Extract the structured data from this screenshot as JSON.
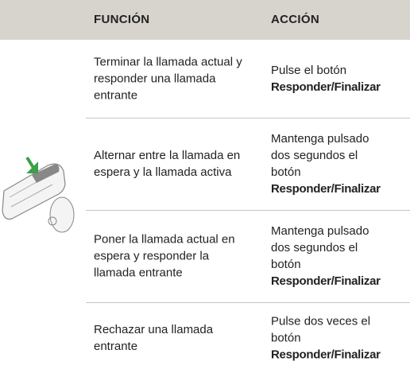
{
  "table": {
    "headers": [
      "FUNCIÓN",
      "ACCIÓN"
    ],
    "rows": [
      {
        "function": "Terminar la llamada actual y responder una llamada entrante",
        "action": {
          "text": "Pulse el botón",
          "bold": "Responder/Finalizar"
        }
      },
      {
        "function": "Alternar entre la llamada en espera y la llamada activa",
        "action": {
          "text": "Mantenga pulsado dos segundos el botón",
          "bold": "Responder/Finalizar"
        }
      },
      {
        "function": "Poner la llamada actual en espera y responder la llamada entrante",
        "action": {
          "text": "Mantenga pulsado dos segundos el botón",
          "bold": "Responder/Finalizar"
        }
      },
      {
        "function": "Rechazar una llamada entrante",
        "action": {
          "text": "Pulse dos veces el botón",
          "bold": "Responder/Finalizar"
        }
      }
    ]
  }
}
